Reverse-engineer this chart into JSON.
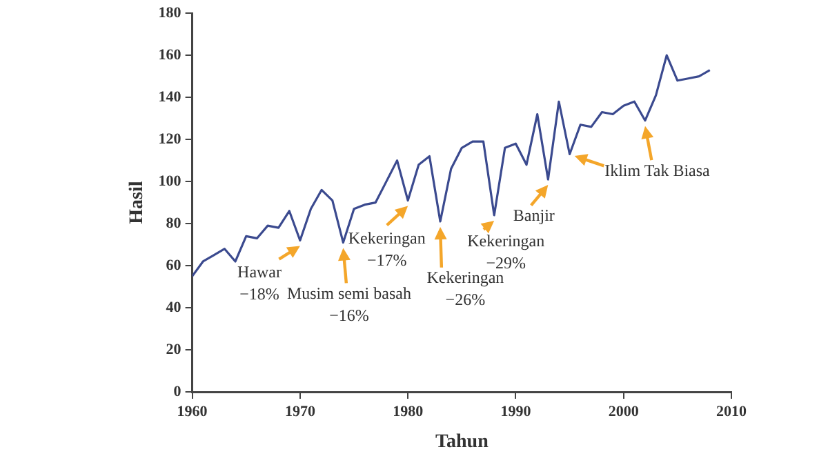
{
  "chart_data": {
    "type": "line",
    "xlabel": "Tahun",
    "ylabel": "Hasil",
    "x": [
      1960,
      1961,
      1962,
      1963,
      1964,
      1965,
      1966,
      1967,
      1968,
      1969,
      1970,
      1971,
      1972,
      1973,
      1974,
      1975,
      1976,
      1977,
      1978,
      1979,
      1980,
      1981,
      1982,
      1983,
      1984,
      1985,
      1986,
      1987,
      1988,
      1989,
      1990,
      1991,
      1992,
      1993,
      1994,
      1995,
      1996,
      1997,
      1998,
      1999,
      2000,
      2001,
      2002,
      2003,
      2004,
      2005,
      2006,
      2007,
      2008
    ],
    "series": [
      {
        "color": "#3b4a8f",
        "values": [
          55,
          62,
          65,
          68,
          62,
          74,
          73,
          79,
          78,
          86,
          72,
          87,
          96,
          91,
          71,
          87,
          89,
          90,
          100,
          110,
          91,
          108,
          112,
          81,
          106,
          116,
          119,
          119,
          84,
          116,
          118,
          108,
          132,
          101,
          138,
          113,
          127,
          126,
          133,
          132,
          136,
          138,
          129,
          141,
          160,
          148,
          149,
          150,
          153
        ]
      }
    ],
    "xlim": [
      1960,
      2010
    ],
    "xticks": [
      1960,
      1970,
      1980,
      1990,
      2000,
      2010
    ],
    "ylim": [
      0,
      180
    ],
    "yticks": [
      0,
      20,
      40,
      60,
      80,
      100,
      120,
      140,
      160,
      180
    ],
    "grid": false,
    "legend": false,
    "marker": "none",
    "line_style": "solid",
    "annotations": [
      {
        "text": "Hawar\n−18%",
        "x": 1970,
        "y": 72
      },
      {
        "text": "Musim semi basah\n−16%",
        "x": 1974,
        "y": 71
      },
      {
        "text": "Kekeringan\n−17%",
        "x": 1980,
        "y": 91
      },
      {
        "text": "Kekeringan\n−26%",
        "x": 1983,
        "y": 81
      },
      {
        "text": "Kekeringan\n−29%",
        "x": 1988,
        "y": 84
      },
      {
        "text": "Banjir",
        "x": 1993,
        "y": 101
      },
      {
        "text": "Iklim Tak Biasa",
        "x": 2002,
        "y": 129
      }
    ]
  }
}
